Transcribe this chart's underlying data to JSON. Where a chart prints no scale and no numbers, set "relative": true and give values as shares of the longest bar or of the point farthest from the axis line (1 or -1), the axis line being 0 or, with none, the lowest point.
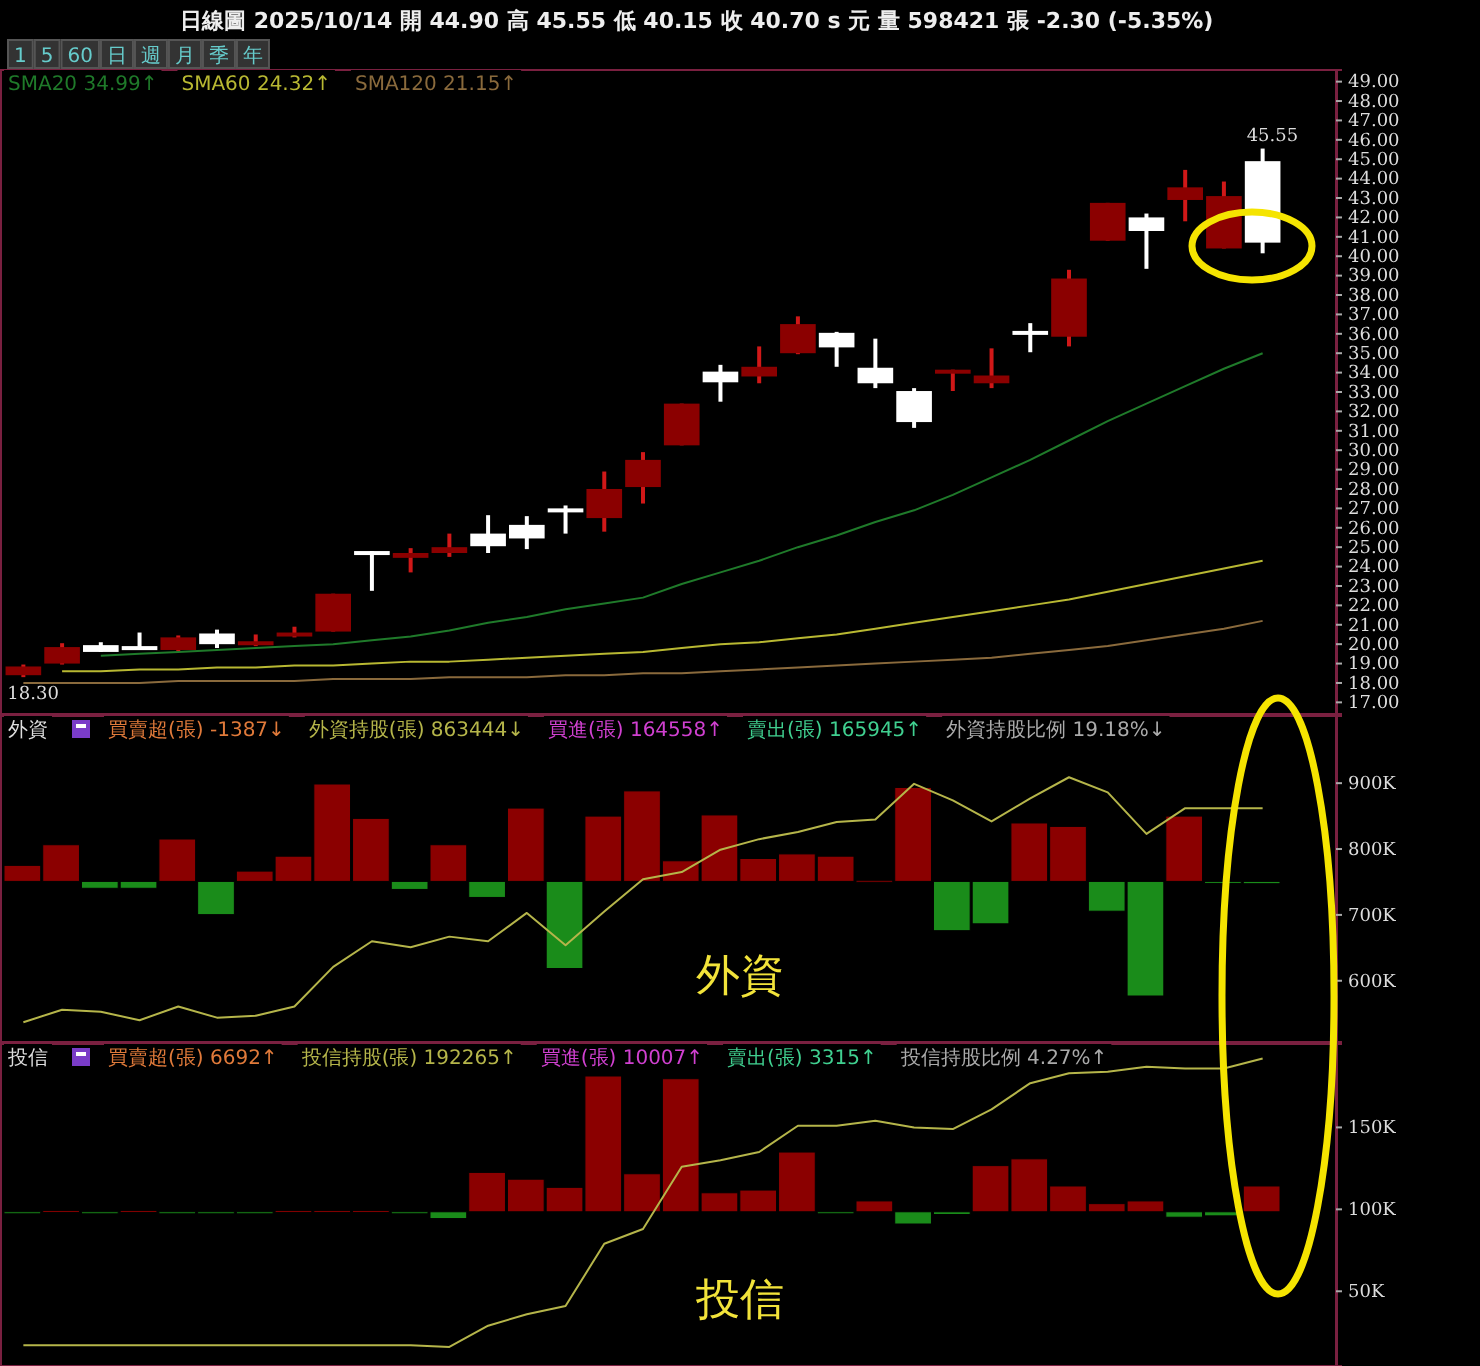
{
  "chart_data": [
    {
      "type": "candlestick",
      "title": "日線圖 2025/10/14 開 44.90 高 45.55 低 40.15 收 40.70 s 元 量 598421 張 -2.30 (-5.35%)",
      "annotations": [
        "1",
        "5",
        "60",
        "日",
        "週",
        "月",
        "季",
        "年",
        {
          "text": "18.30",
          "y": 18.3
        },
        {
          "text": "45.55",
          "y": 45.55
        }
      ],
      "categories": [
        null,
        null,
        null,
        null,
        null,
        null,
        null,
        null,
        null,
        null,
        null,
        null,
        null,
        null,
        null,
        null,
        null,
        null,
        null,
        null,
        null,
        null,
        null,
        null,
        null,
        null,
        null,
        null,
        null,
        null,
        null,
        null,
        null
      ],
      "ohlc": [
        [
          18.4,
          18.95,
          18.3,
          18.85
        ],
        [
          19.0,
          20.05,
          18.95,
          19.85
        ],
        [
          19.95,
          20.1,
          19.6,
          19.6
        ],
        [
          19.9,
          20.6,
          19.8,
          19.8
        ],
        [
          19.7,
          20.45,
          19.65,
          20.35
        ],
        [
          20.55,
          20.75,
          19.8,
          20.0
        ],
        [
          20.0,
          20.5,
          19.9,
          20.15
        ],
        [
          20.45,
          20.9,
          20.35,
          20.6
        ],
        [
          20.65,
          22.6,
          20.65,
          22.6
        ],
        [
          24.8,
          24.8,
          22.75,
          24.7
        ],
        [
          24.45,
          24.95,
          23.7,
          24.7
        ],
        [
          24.7,
          25.7,
          24.5,
          25.0
        ],
        [
          25.7,
          26.65,
          24.7,
          25.05
        ],
        [
          26.15,
          26.6,
          24.9,
          25.45
        ],
        [
          27.0,
          27.15,
          25.7,
          26.85
        ],
        [
          26.5,
          28.9,
          25.8,
          28.0
        ],
        [
          28.1,
          29.9,
          27.25,
          29.5
        ],
        [
          30.25,
          32.4,
          30.25,
          32.4
        ],
        [
          34.05,
          34.4,
          32.5,
          33.5
        ],
        [
          33.8,
          35.35,
          33.45,
          34.3
        ],
        [
          35.0,
          36.9,
          34.95,
          36.5
        ],
        [
          36.05,
          36.1,
          34.3,
          35.3
        ],
        [
          34.25,
          35.75,
          33.2,
          33.45
        ],
        [
          33.05,
          33.2,
          31.15,
          31.45
        ],
        [
          34.05,
          34.15,
          33.05,
          34.15
        ],
        [
          33.45,
          35.25,
          33.2,
          33.85
        ],
        [
          36.15,
          36.55,
          35.05,
          36.05
        ],
        [
          35.85,
          39.3,
          35.35,
          38.85
        ],
        [
          40.8,
          42.75,
          40.8,
          42.75
        ],
        [
          42.0,
          42.2,
          39.35,
          41.3
        ],
        [
          42.9,
          44.45,
          41.8,
          43.55
        ],
        [
          40.4,
          43.85,
          40.4,
          43.1
        ],
        [
          44.9,
          45.55,
          40.15,
          40.7
        ]
      ],
      "series": [
        {
          "type": "line",
          "name": "SMA20 34.99↑",
          "color": "#1f7a2a",
          "values": [
            null,
            null,
            19.4,
            19.5,
            19.6,
            19.7,
            19.8,
            19.9,
            20.0,
            20.2,
            20.4,
            20.7,
            21.1,
            21.4,
            21.8,
            22.1,
            22.4,
            23.1,
            23.7,
            24.3,
            25.0,
            25.6,
            26.3,
            26.9,
            27.7,
            28.6,
            29.5,
            30.5,
            31.5,
            32.4,
            33.3,
            34.2,
            35.0
          ]
        },
        {
          "type": "line",
          "name": "SMA60 24.32↑",
          "color": "#b8b832",
          "values": [
            null,
            18.6,
            18.6,
            18.7,
            18.7,
            18.8,
            18.8,
            18.9,
            18.9,
            19.0,
            19.1,
            19.1,
            19.2,
            19.3,
            19.4,
            19.5,
            19.6,
            19.8,
            20.0,
            20.1,
            20.3,
            20.5,
            20.8,
            21.1,
            21.4,
            21.7,
            22.0,
            22.3,
            22.7,
            23.1,
            23.5,
            23.9,
            24.3
          ]
        },
        {
          "type": "line",
          "name": "SMA120 21.15↑",
          "color": "#8a6a3c",
          "values": [
            18.0,
            18.0,
            18.0,
            18.0,
            18.1,
            18.1,
            18.1,
            18.1,
            18.2,
            18.2,
            18.2,
            18.3,
            18.3,
            18.3,
            18.4,
            18.4,
            18.5,
            18.5,
            18.6,
            18.7,
            18.8,
            18.9,
            19.0,
            19.1,
            19.2,
            19.3,
            19.5,
            19.7,
            19.9,
            20.2,
            20.5,
            20.8,
            21.2
          ]
        }
      ],
      "ylim": [
        16.4,
        49.6
      ],
      "yticks": [
        {
          "value": 17,
          "label": "17.00"
        },
        {
          "value": 18,
          "label": "18.00"
        },
        {
          "value": 19,
          "label": "19.00"
        },
        {
          "value": 20,
          "label": "20.00"
        },
        {
          "value": 21,
          "label": "21.00"
        },
        {
          "value": 22,
          "label": "22.00"
        },
        {
          "value": 23,
          "label": "23.00"
        },
        {
          "value": 24,
          "label": "24.00"
        },
        {
          "value": 25,
          "label": "25.00"
        },
        {
          "value": 26,
          "label": "26.00"
        },
        {
          "value": 27,
          "label": "27.00"
        },
        {
          "value": 28,
          "label": "28.00"
        },
        {
          "value": 29,
          "label": "29.00"
        },
        {
          "value": 30,
          "label": "30.00"
        },
        {
          "value": 31,
          "label": "31.00"
        },
        {
          "value": 32,
          "label": "32.00"
        },
        {
          "value": 33,
          "label": "33.00"
        },
        {
          "value": 34,
          "label": "34.00"
        },
        {
          "value": 35,
          "label": "35.00"
        },
        {
          "value": 36,
          "label": "36.00"
        },
        {
          "value": 37,
          "label": "37.00"
        },
        {
          "value": 38,
          "label": "38.00"
        },
        {
          "value": 39,
          "label": "39.00"
        },
        {
          "value": 40,
          "label": "40.00"
        },
        {
          "value": 41,
          "label": "41.00"
        },
        {
          "value": 42,
          "label": "42.00"
        },
        {
          "value": 43,
          "label": "43.00"
        },
        {
          "value": 44,
          "label": "44.00"
        },
        {
          "value": 45,
          "label": "45.00"
        },
        {
          "value": 46,
          "label": "46.00"
        },
        {
          "value": 47,
          "label": "47.00"
        },
        {
          "value": 48,
          "label": "48.00"
        },
        {
          "value": 49,
          "label": "49.00"
        }
      ],
      "tick_labels": "y",
      "legend": "top left"
    },
    {
      "type": "bar",
      "relative": true,
      "annotations": [
        "外資",
        "買進(張) 164558↑",
        "賣出(張) 165945↑",
        "外資持股比例 19.18%↓"
      ],
      "categories": [
        null,
        null,
        null,
        null,
        null,
        null,
        null,
        null,
        null,
        null,
        null,
        null,
        null,
        null,
        null,
        null,
        null,
        null,
        null,
        null,
        null,
        null,
        null,
        null,
        null,
        null,
        null,
        null,
        null,
        null,
        null,
        null,
        null
      ],
      "series": [
        {
          "name": "買賣超(張) -1387↓",
          "color": "#e07a3a",
          "colors": [
            "#8b0000",
            "#8b0000",
            "#1a8c1a",
            "#1a8c1a",
            "#8b0000",
            "#1a8c1a",
            "#8b0000",
            "#8b0000",
            "#8b0000",
            "#8b0000",
            "#1a8c1a",
            "#8b0000",
            "#1a8c1a",
            "#8b0000",
            "#1a8c1a",
            "#8b0000",
            "#8b0000",
            "#8b0000",
            "#8b0000",
            "#8b0000",
            "#8b0000",
            "#8b0000",
            "#8b0000",
            "#8b0000",
            "#1a8c1a",
            "#1a8c1a",
            "#8b0000",
            "#8b0000",
            "#1a8c1a",
            "#1a8c1a",
            "#8b0000",
            "#1a8c1a",
            "#1a8c1a"
          ],
          "values": [
            0.14,
            0.32,
            -0.06,
            -0.06,
            0.37,
            -0.29,
            0.09,
            0.22,
            0.85,
            0.55,
            -0.07,
            0.32,
            -0.14,
            0.64,
            -0.76,
            0.57,
            0.79,
            0.18,
            0.58,
            0.2,
            0.24,
            0.22,
            0.01,
            0.82,
            -0.43,
            -0.37,
            0.51,
            0.48,
            -0.26,
            -1,
            0.57,
            -0.01,
            -0.02
          ]
        }
      ],
      "legend": "top left"
    },
    {
      "type": "line",
      "annotations": [
        "外資"
      ],
      "categories": [
        null,
        null,
        null,
        null,
        null,
        null,
        null,
        null,
        null,
        null,
        null,
        null,
        null,
        null,
        null,
        null,
        null,
        null,
        null,
        null,
        null,
        null,
        null,
        null,
        null,
        null,
        null,
        null,
        null,
        null,
        null,
        null,
        null
      ],
      "series": [
        {
          "name": "外資持股(張) 863444↓",
          "color": "#b5b54a",
          "values": [
            537,
            556,
            553,
            540,
            561,
            544,
            547,
            561,
            621,
            660,
            651,
            667,
            660,
            703,
            654,
            705,
            754,
            765,
            799,
            815,
            826,
            841,
            845,
            899,
            874,
            842,
            877,
            909,
            886,
            823,
            862,
            862,
            862
          ]
        }
      ],
      "ylim": [
        507,
        1002
      ],
      "yticks": [
        {
          "value": 600,
          "label": "600K"
        },
        {
          "value": 700,
          "label": "700K"
        },
        {
          "value": 800,
          "label": "800K"
        },
        {
          "value": 900,
          "label": "900K"
        }
      ],
      "tick_labels": "y",
      "legend": "top left"
    },
    {
      "type": "bar",
      "relative": true,
      "annotations": [
        "投信",
        "買進(張) 10007↑",
        "賣出(張) 3315↑",
        "投信持股比例 4.27%↑"
      ],
      "categories": [
        null,
        null,
        null,
        null,
        null,
        null,
        null,
        null,
        null,
        null,
        null,
        null,
        null,
        null,
        null,
        null,
        null,
        null,
        null,
        null,
        null,
        null,
        null,
        null,
        null,
        null,
        null,
        null,
        null,
        null,
        null,
        null,
        null
      ],
      "series": [
        {
          "name": "買賣超(張) 6692↑",
          "color": "#e07a3a",
          "colors": [
            "#1a8c1a",
            "#8b0000",
            "#1a8c1a",
            "#8b0000",
            "#1a8c1a",
            "#1a8c1a",
            "#1a8c1a",
            "#8b0000",
            "#8b0000",
            "#8b0000",
            "#1a8c1a",
            "#1a8c1a",
            "#8b0000",
            "#8b0000",
            "#8b0000",
            "#8b0000",
            "#8b0000",
            "#8b0000",
            "#8b0000",
            "#8b0000",
            "#8b0000",
            "#1a8c1a",
            "#8b0000",
            "#1a8c1a",
            "#1a8c1a",
            "#8b0000",
            "#8b0000",
            "#8b0000",
            "#8b0000",
            "#8b0000",
            "#1a8c1a",
            "#1a8c1a",
            "#8b0000"
          ],
          "values": [
            -0.01,
            0.01,
            -0.01,
            0.01,
            -0.01,
            -0.01,
            -0.01,
            0.01,
            0.01,
            0.01,
            -0.01,
            -0.05,
            0.29,
            0.24,
            0.18,
            1,
            0.28,
            0.98,
            0.14,
            0.16,
            0.44,
            -0.01,
            0.08,
            -0.09,
            -0.02,
            0.34,
            0.39,
            0.19,
            0.06,
            0.08,
            -0.04,
            -0.03,
            0.19
          ]
        }
      ],
      "legend": "top left"
    },
    {
      "type": "line",
      "annotations": [
        "投信"
      ],
      "categories": [
        null,
        null,
        null,
        null,
        null,
        null,
        null,
        null,
        null,
        null,
        null,
        null,
        null,
        null,
        null,
        null,
        null,
        null,
        null,
        null,
        null,
        null,
        null,
        null,
        null,
        null,
        null,
        null,
        null,
        null,
        null,
        null,
        null
      ],
      "series": [
        {
          "name": "投信持股(張) 192265↑",
          "color": "#b5b54a",
          "values": [
            17,
            17,
            17,
            17,
            17,
            17,
            17,
            17,
            17,
            17,
            17,
            16,
            29,
            36,
            41,
            79,
            88,
            126,
            130,
            135,
            151,
            151,
            154,
            150,
            149,
            161,
            177,
            183,
            184,
            187,
            186,
            186,
            192
          ]
        }
      ],
      "ylim": [
        4.4,
        200.9
      ],
      "yticks": [
        {
          "value": 50,
          "label": "50K"
        },
        {
          "value": 100,
          "label": "100K"
        },
        {
          "value": 150,
          "label": "150K"
        }
      ],
      "tick_labels": "y",
      "legend": "top left"
    }
  ]
}
